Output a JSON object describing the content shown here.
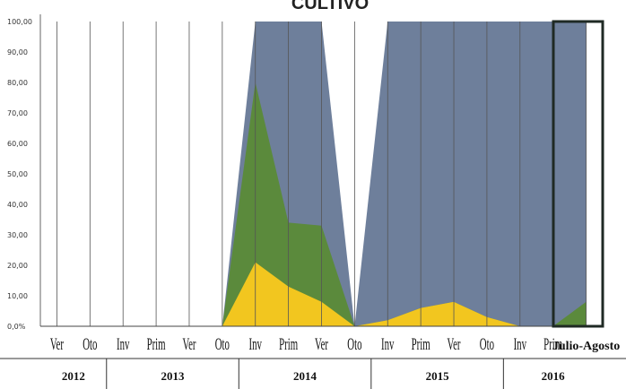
{
  "chart_data": {
    "type": "area",
    "title": "CULTIVO",
    "ylim": [
      0,
      100
    ],
    "yticks": [
      "0,0%",
      "10,00",
      "20,00",
      "30,00",
      "40,00",
      "50,00",
      "60,00",
      "70,00",
      "80,00",
      "90,00",
      "100,00"
    ],
    "categories": [
      "Ver",
      "Oto",
      "Inv",
      "Prim",
      "Ver",
      "Oto",
      "Inv",
      "Prim",
      "Ver",
      "Oto",
      "Inv",
      "Prim",
      "Ver",
      "Oto",
      "Inv",
      "Prim",
      "Julio-Agosto"
    ],
    "years": [
      {
        "label": "2012",
        "span": [
          0,
          1
        ]
      },
      {
        "label": "2013",
        "span": [
          2,
          5
        ]
      },
      {
        "label": "2014",
        "span": [
          6,
          9
        ]
      },
      {
        "label": "2015",
        "span": [
          10,
          13
        ]
      },
      {
        "label": "2016",
        "span": [
          14,
          16
        ]
      }
    ],
    "series": [
      {
        "color": "#f2c61f",
        "values": [
          0,
          0,
          0,
          0,
          0,
          0,
          21,
          13,
          8,
          0,
          2,
          6,
          8,
          3,
          0,
          0,
          0
        ]
      },
      {
        "color": "#5b8a3c",
        "values": [
          0,
          0,
          0,
          0,
          0,
          0,
          80,
          34,
          33,
          0,
          2,
          6,
          8,
          3,
          0,
          0,
          8
        ]
      },
      {
        "color": "#6e7f9b",
        "values": [
          0,
          0,
          0,
          0,
          0,
          0,
          100,
          100,
          100,
          0,
          100,
          100,
          100,
          100,
          100,
          100,
          100
        ]
      }
    ],
    "xlabel": "",
    "ylabel": ""
  },
  "colors": {
    "yellow": "#f2c61f",
    "green": "#5b8a3c",
    "blue": "#6e7f9b",
    "orange": "#d9822b",
    "highlight_border": "#1f2a24"
  }
}
